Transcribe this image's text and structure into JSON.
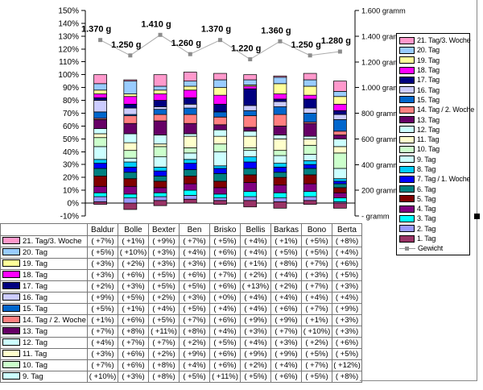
{
  "chart_data": {
    "type": "bar",
    "subtype": "stacked-percent-columns-with-line-overlay",
    "categories": [
      "Baldur",
      "Bolle",
      "Bexter",
      "Ben",
      "Brisko",
      "Bellis",
      "Barkas",
      "Bono",
      "Berta"
    ],
    "left_axis_ticks": [
      "150%",
      "140%",
      "130%",
      "120%",
      "110%",
      "100%",
      "90%",
      "80%",
      "70%",
      "60%",
      "50%",
      "40%",
      "30%",
      "20%",
      "10%",
      "0%",
      "-10%"
    ],
    "left_axis_range": [
      -10,
      150
    ],
    "right_axis_ticks": [
      "1.600 gramm",
      "1.400 gramm",
      "1.200 gramm",
      "1.000 gramm",
      "800 gramm",
      "600 gramm",
      "400 gramm",
      "200 gramm",
      "-      gramm"
    ],
    "right_axis_values": [
      1600,
      1400,
      1200,
      1000,
      800,
      600,
      400,
      200,
      0
    ],
    "grid": "off",
    "legend_position": "right",
    "days": [
      {
        "name": "1. Tag",
        "color": "#993366",
        "base": [
          -1,
          -5,
          -2,
          0,
          -1,
          -3,
          -4,
          -1,
          -4
        ],
        "values": [
          2,
          5,
          4,
          3,
          3,
          5,
          5,
          3,
          4
        ],
        "estimated_from_bars": true
      },
      {
        "name": "2. Tag",
        "color": "#9999FF",
        "values": [
          4,
          4,
          3,
          3,
          2,
          3,
          3,
          3,
          1
        ],
        "estimated_from_bars": true
      },
      {
        "name": "3. Tag",
        "color": "#00FFFF",
        "values": [
          3,
          3,
          3,
          4,
          3,
          4,
          4,
          4,
          3
        ],
        "estimated_from_bars": true
      },
      {
        "name": "4. Tag",
        "color": "#800080",
        "values": [
          5,
          6,
          4,
          5,
          5,
          7,
          6,
          6,
          4
        ],
        "estimated_from_bars": true
      },
      {
        "name": "5. Tag",
        "color": "#800000",
        "values": [
          8,
          6,
          5,
          6,
          5,
          6,
          6,
          7,
          4
        ],
        "estimated_from_bars": true
      },
      {
        "name": "6. Tag",
        "color": "#008080",
        "values": [
          6,
          5,
          4,
          5,
          6,
          5,
          4,
          5,
          3
        ],
        "estimated_from_bars": true
      },
      {
        "name": "7. Tag / 1. Woche",
        "color": "#0000FF",
        "values": [
          4,
          4,
          4,
          5,
          4,
          5,
          4,
          3,
          2
        ],
        "estimated_from_bars": true
      },
      {
        "name": "8. Tag",
        "color": "#00CCFF",
        "values": [
          3,
          4,
          3,
          3,
          2,
          4,
          3,
          3,
          2
        ],
        "estimated_from_bars": true
      },
      {
        "name": "9. Tag",
        "color": "#CCFFFF",
        "values": [
          10,
          3,
          8,
          5,
          11,
          5,
          6,
          5,
          8
        ]
      },
      {
        "name": "10. Tag",
        "color": "#CCFFCC",
        "values": [
          7,
          6,
          8,
          4,
          6,
          2,
          4,
          7,
          12
        ]
      },
      {
        "name": "11. Tag",
        "color": "#FFFFCC",
        "values": [
          3,
          6,
          2,
          9,
          6,
          9,
          9,
          5,
          5
        ]
      },
      {
        "name": "12. Tag",
        "color": "#CCFFFF",
        "values": [
          4,
          7,
          7,
          2,
          5,
          4,
          3,
          2,
          6
        ]
      },
      {
        "name": "13. Tag",
        "color": "#660066",
        "values": [
          7,
          8,
          11,
          8,
          4,
          3,
          7,
          10,
          3
        ]
      },
      {
        "name": "14. Tag / 2. Woche",
        "color": "#FF8080",
        "values": [
          1,
          6,
          5,
          7,
          6,
          9,
          9,
          1,
          3
        ]
      },
      {
        "name": "15. Tag",
        "color": "#0066CC",
        "values": [
          5,
          1,
          4,
          5,
          4,
          4,
          6,
          7,
          9
        ]
      },
      {
        "name": "16. Tag",
        "color": "#CCCCFF",
        "values": [
          9,
          5,
          2,
          3,
          0,
          4,
          4,
          4,
          4
        ]
      },
      {
        "name": "17. Tag",
        "color": "#000080",
        "values": [
          2,
          3,
          5,
          5,
          6,
          13,
          2,
          7,
          3
        ]
      },
      {
        "name": "18. Tag",
        "color": "#FF00FF",
        "values": [
          3,
          6,
          5,
          6,
          7,
          2,
          4,
          3,
          5
        ]
      },
      {
        "name": "19. Tag",
        "color": "#FFFF99",
        "values": [
          3,
          2,
          3,
          3,
          6,
          1,
          8,
          7,
          6
        ]
      },
      {
        "name": "20. Tag",
        "color": "#99CCFF",
        "values": [
          5,
          10,
          3,
          4,
          6,
          4,
          5,
          5,
          4
        ]
      },
      {
        "name": "21. Tag/3. Woche",
        "color": "#FF99CC",
        "values": [
          7,
          1,
          9,
          7,
          5,
          4,
          1,
          5,
          8
        ]
      }
    ],
    "gewicht": {
      "name": "Gewicht",
      "line_color": "#ABABAB",
      "marker_color": "#8C8C8C",
      "values_g": [
        1370,
        1250,
        1410,
        1260,
        1370,
        1220,
        1360,
        1250,
        1280
      ],
      "labels": [
        "1.370 g",
        "1.250 g",
        "1.410 g",
        "1.260 g",
        "1.370 g",
        "1.220 g",
        "1.360 g",
        "1.250 g",
        "1.280 g"
      ]
    }
  },
  "table": {
    "rows": [
      {
        "label": "21. Tag/3. Woche",
        "color": "#FF99CC",
        "values": [
          "( +7%)",
          "( +1%)",
          "( +9%)",
          "( +7%)",
          "( +5%)",
          "( +4%)",
          "( +1%)",
          "( +5%)",
          "( +8%)"
        ]
      },
      {
        "label": "20. Tag",
        "color": "#99CCFF",
        "values": [
          "( +5%)",
          "( +10%)",
          "( +3%)",
          "( +4%)",
          "( +6%)",
          "( +4%)",
          "( +5%)",
          "( +5%)",
          "( +4%)"
        ]
      },
      {
        "label": "19. Tag",
        "color": "#FFFF99",
        "values": [
          "( +3%)",
          "( +2%)",
          "( +3%)",
          "( +3%)",
          "( +6%)",
          "( +1%)",
          "( +8%)",
          "( +7%)",
          "( +6%)"
        ]
      },
      {
        "label": "18. Tag",
        "color": "#FF00FF",
        "values": [
          "( +3%)",
          "( +6%)",
          "( +5%)",
          "( +6%)",
          "( +7%)",
          "( +2%)",
          "( +4%)",
          "( +3%)",
          "( +5%)"
        ]
      },
      {
        "label": "17. Tag",
        "color": "#000080",
        "values": [
          "( +2%)",
          "( +3%)",
          "( +5%)",
          "( +5%)",
          "( +6%)",
          "( +13%)",
          "( +2%)",
          "( +7%)",
          "( +3%)"
        ]
      },
      {
        "label": "16. Tag",
        "color": "#CCCCFF",
        "values": [
          "( +9%)",
          "( +5%)",
          "( +2%)",
          "( +3%)",
          "( +0%)",
          "( +4%)",
          "( +4%)",
          "( +4%)",
          "( +4%)"
        ]
      },
      {
        "label": "15. Tag",
        "color": "#0066CC",
        "values": [
          "( +5%)",
          "( +1%)",
          "( +4%)",
          "( +5%)",
          "( +4%)",
          "( +4%)",
          "( +6%)",
          "( +7%)",
          "( +9%)"
        ]
      },
      {
        "label": "14. Tag / 2. Woche",
        "color": "#FF8080",
        "values": [
          "( +1%)",
          "( +6%)",
          "( +5%)",
          "( +7%)",
          "( +6%)",
          "( +9%)",
          "( +9%)",
          "( +1%)",
          "( +3%)"
        ]
      },
      {
        "label": "13. Tag",
        "color": "#660066",
        "values": [
          "( +7%)",
          "( +8%)",
          "( +11%)",
          "( +8%)",
          "( +4%)",
          "( +3%)",
          "( +7%)",
          "( +10%)",
          "( +3%)"
        ]
      },
      {
        "label": "12. Tag",
        "color": "#CCFFFF",
        "values": [
          "( +4%)",
          "( +7%)",
          "( +7%)",
          "( +2%)",
          "( +5%)",
          "( +4%)",
          "( +3%)",
          "( +2%)",
          "( +6%)"
        ]
      },
      {
        "label": "11. Tag",
        "color": "#FFFFCC",
        "values": [
          "( +3%)",
          "( +6%)",
          "( +2%)",
          "( +9%)",
          "( +6%)",
          "( +9%)",
          "( +9%)",
          "( +5%)",
          "( +5%)"
        ]
      },
      {
        "label": "10. Tag",
        "color": "#CCFFCC",
        "values": [
          "( +7%)",
          "( +6%)",
          "( +8%)",
          "( +4%)",
          "( +6%)",
          "( +2%)",
          "( +4%)",
          "( +7%)",
          "( +12%)"
        ]
      },
      {
        "label": "9. Tag",
        "color": "#CCFFFF",
        "values": [
          "( +10%)",
          "( +3%)",
          "( +8%)",
          "( +5%)",
          "( +11%)",
          "( +5%)",
          "( +6%)",
          "( +5%)",
          "( +8%)"
        ]
      }
    ]
  }
}
